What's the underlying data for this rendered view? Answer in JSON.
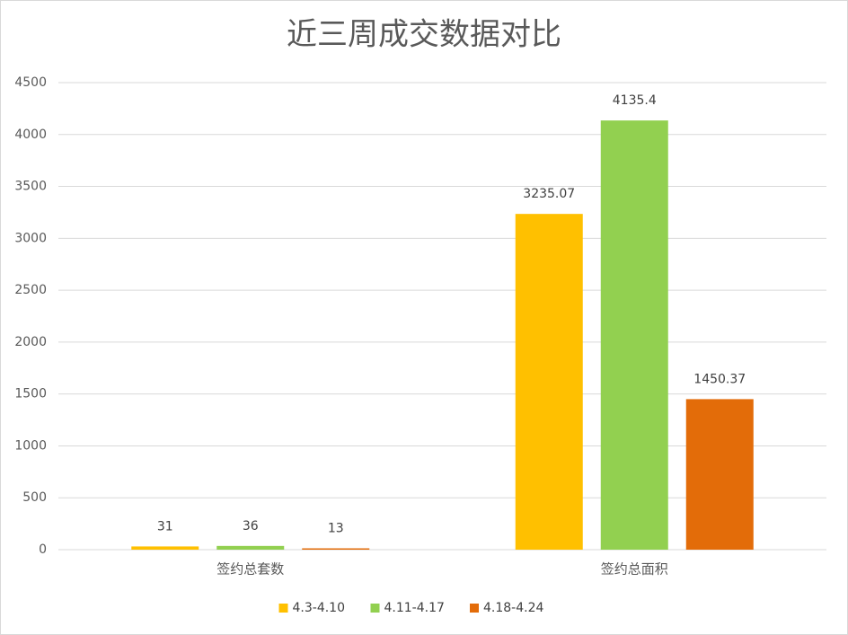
{
  "chart_data": {
    "type": "bar",
    "title": "近三周成交数据对比",
    "categories": [
      "签约总套数",
      "签约总面积"
    ],
    "series": [
      {
        "name": "4.3-4.10",
        "color": "#FFC000",
        "values": [
          31,
          3235.07
        ]
      },
      {
        "name": "4.11-4.17",
        "color": "#92D050",
        "values": [
          36,
          4135.4
        ]
      },
      {
        "name": "4.18-4.24",
        "color": "#E36C09",
        "values": [
          13,
          1450.37
        ]
      }
    ],
    "ylim": [
      0,
      4500
    ],
    "yticks": [
      0,
      500,
      1000,
      1500,
      2000,
      2500,
      3000,
      3500,
      4000,
      4500
    ],
    "grid": true,
    "legend": "bottom"
  }
}
